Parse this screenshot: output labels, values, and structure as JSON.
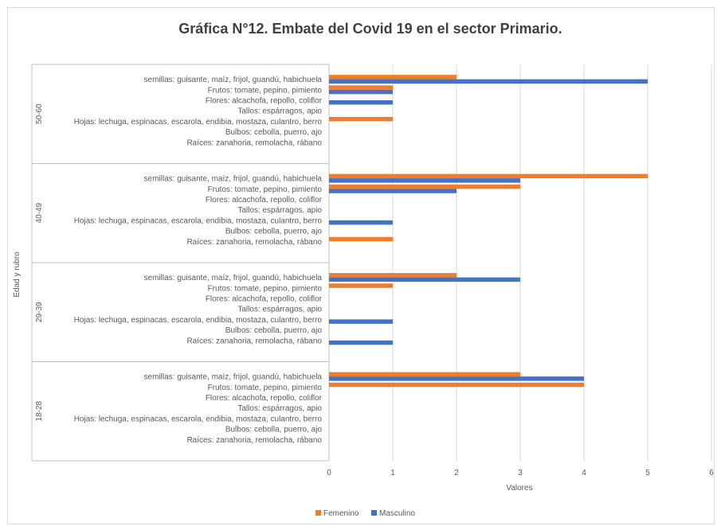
{
  "chart_data": {
    "type": "bar",
    "orientation": "horizontal",
    "title": "Gráfica N°12. Embate del Covid 19 en el sector Primario.",
    "xlabel": "Valores",
    "ylabel": "Edad y rubro",
    "xlim": [
      0,
      6
    ],
    "x_ticks": [
      "0",
      "1",
      "2",
      "3",
      "4",
      "5",
      "6"
    ],
    "grid": true,
    "legend_position": "bottom",
    "categories": [
      "semillas: guisante, maíz, frijol, guandú, habichuela",
      "Frutos: tomate, pepino, pimiento",
      "Flores: alcachofa, repollo, coliflor",
      "Tallos: espárragos, apio",
      "Hojas: lechuga, espinacas, escarola, endibia, mostaza, culantro, berro",
      "Bulbos: cebolla, puerro, ajo",
      "Raíces: zanahoria, remolacha, rábano"
    ],
    "groups": [
      {
        "name": "50-60",
        "femenino": [
          2,
          1,
          0,
          0,
          1,
          0,
          0
        ],
        "masculino": [
          5,
          1,
          1,
          0,
          0,
          0,
          0
        ]
      },
      {
        "name": "40-49",
        "femenino": [
          5,
          3,
          0,
          0,
          0,
          0,
          1
        ],
        "masculino": [
          3,
          2,
          0,
          0,
          1,
          0,
          0
        ]
      },
      {
        "name": "29-39",
        "femenino": [
          2,
          1,
          0,
          0,
          0,
          0,
          0
        ],
        "masculino": [
          3,
          0,
          0,
          0,
          1,
          0,
          1
        ]
      },
      {
        "name": "18-28",
        "femenino": [
          3,
          4,
          0,
          0,
          0,
          0,
          0
        ],
        "masculino": [
          4,
          0,
          0,
          0,
          0,
          0,
          0
        ]
      }
    ],
    "series": [
      {
        "name": "Femenino",
        "color": "#ED7D31"
      },
      {
        "name": "Masculino",
        "color": "#4472C4"
      }
    ]
  }
}
